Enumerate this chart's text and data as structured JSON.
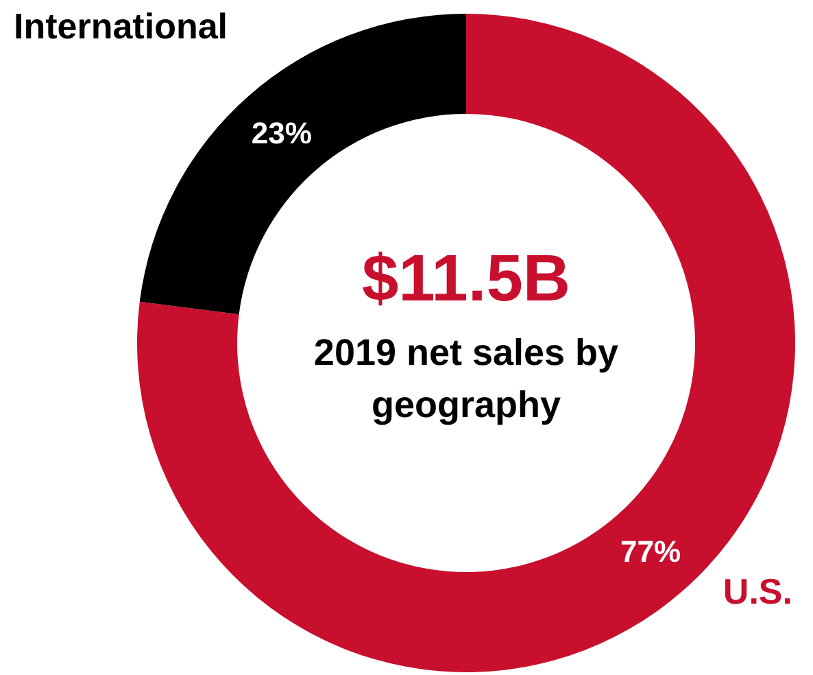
{
  "chart_data": {
    "type": "donut",
    "title": "$11.5B",
    "subtitle": "2019 net sales by geography",
    "categories": [
      "U.S.",
      "International"
    ],
    "values": [
      77,
      23
    ],
    "colors": [
      "#c8102e",
      "#000000"
    ],
    "value_labels": [
      "77%",
      "23%"
    ]
  }
}
